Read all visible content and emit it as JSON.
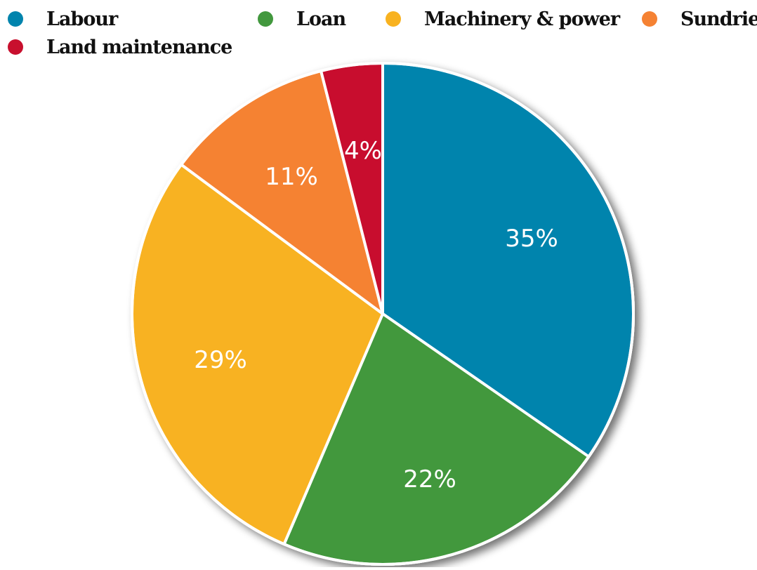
{
  "chart_data": {
    "type": "pie",
    "slices": [
      {
        "name": "Labour",
        "value": 35,
        "label": "35%",
        "color": "#0184ad"
      },
      {
        "name": "Loan",
        "value": 22,
        "label": "22%",
        "color": "#42983e"
      },
      {
        "name": "Machinery & power",
        "value": 29,
        "label": "29%",
        "color": "#f8b220"
      },
      {
        "name": "Sundries",
        "value": 11,
        "label": "11%",
        "color": "#f58233"
      },
      {
        "name": "Land maintenance",
        "value": 4,
        "label": "4%",
        "color": "#c8102e"
      }
    ],
    "start_angle": "12 o'clock",
    "direction": "clockwise",
    "legend_position": "top"
  }
}
